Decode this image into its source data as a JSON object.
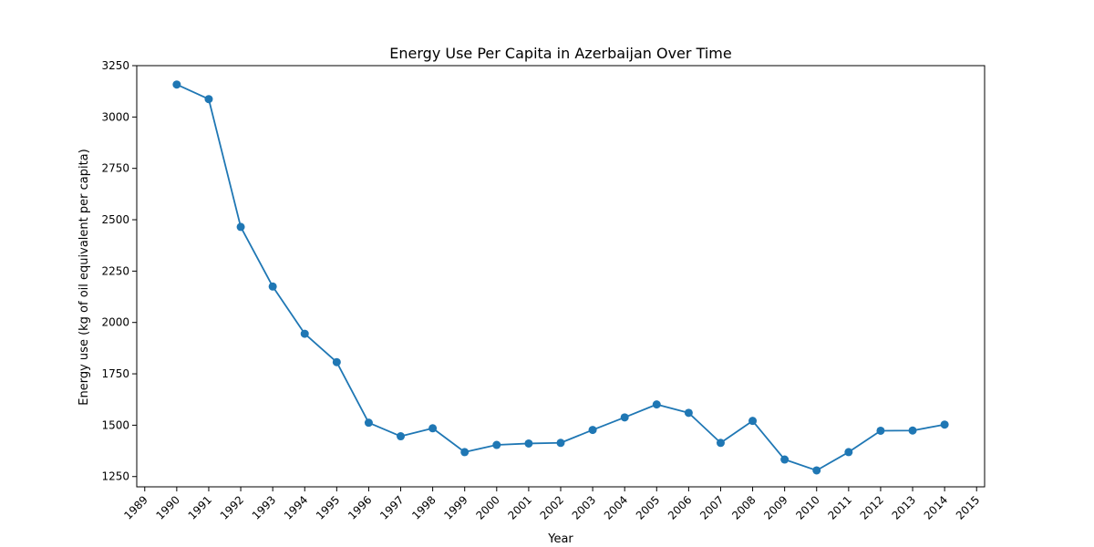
{
  "chart_data": {
    "type": "line",
    "title": "Energy Use Per Capita in Azerbaijan Over Time",
    "xlabel": "Year",
    "ylabel": "Energy use (kg of oil equivalent per capita)",
    "x": [
      1990,
      1991,
      1992,
      1993,
      1994,
      1995,
      1996,
      1997,
      1998,
      1999,
      2000,
      2001,
      2002,
      2003,
      2004,
      2005,
      2006,
      2007,
      2008,
      2009,
      2010,
      2011,
      2012,
      2013,
      2014
    ],
    "series": [
      {
        "values": [
          3158,
          3087,
          2465,
          2175,
          1945,
          1807,
          1512,
          1446,
          1485,
          1369,
          1404,
          1411,
          1414,
          1477,
          1538,
          1601,
          1560,
          1414,
          1521,
          1333,
          1280,
          1369,
          1473,
          1474,
          1503
        ],
        "color": "#1f77b4"
      }
    ],
    "xlim": [
      1988.75,
      2015.25
    ],
    "ylim": [
      1200,
      3250
    ],
    "x_ticks": [
      "1989",
      "1990",
      "1991",
      "1992",
      "1993",
      "1994",
      "1995",
      "1996",
      "1997",
      "1998",
      "1999",
      "2000",
      "2001",
      "2002",
      "2003",
      "2004",
      "2005",
      "2006",
      "2007",
      "2008",
      "2009",
      "2010",
      "2011",
      "2012",
      "2013",
      "2014",
      "2015"
    ],
    "y_ticks": [
      "1250",
      "1500",
      "1750",
      "2000",
      "2250",
      "2500",
      "2750",
      "3000",
      "3250"
    ],
    "grid": false,
    "marker": "circle"
  }
}
